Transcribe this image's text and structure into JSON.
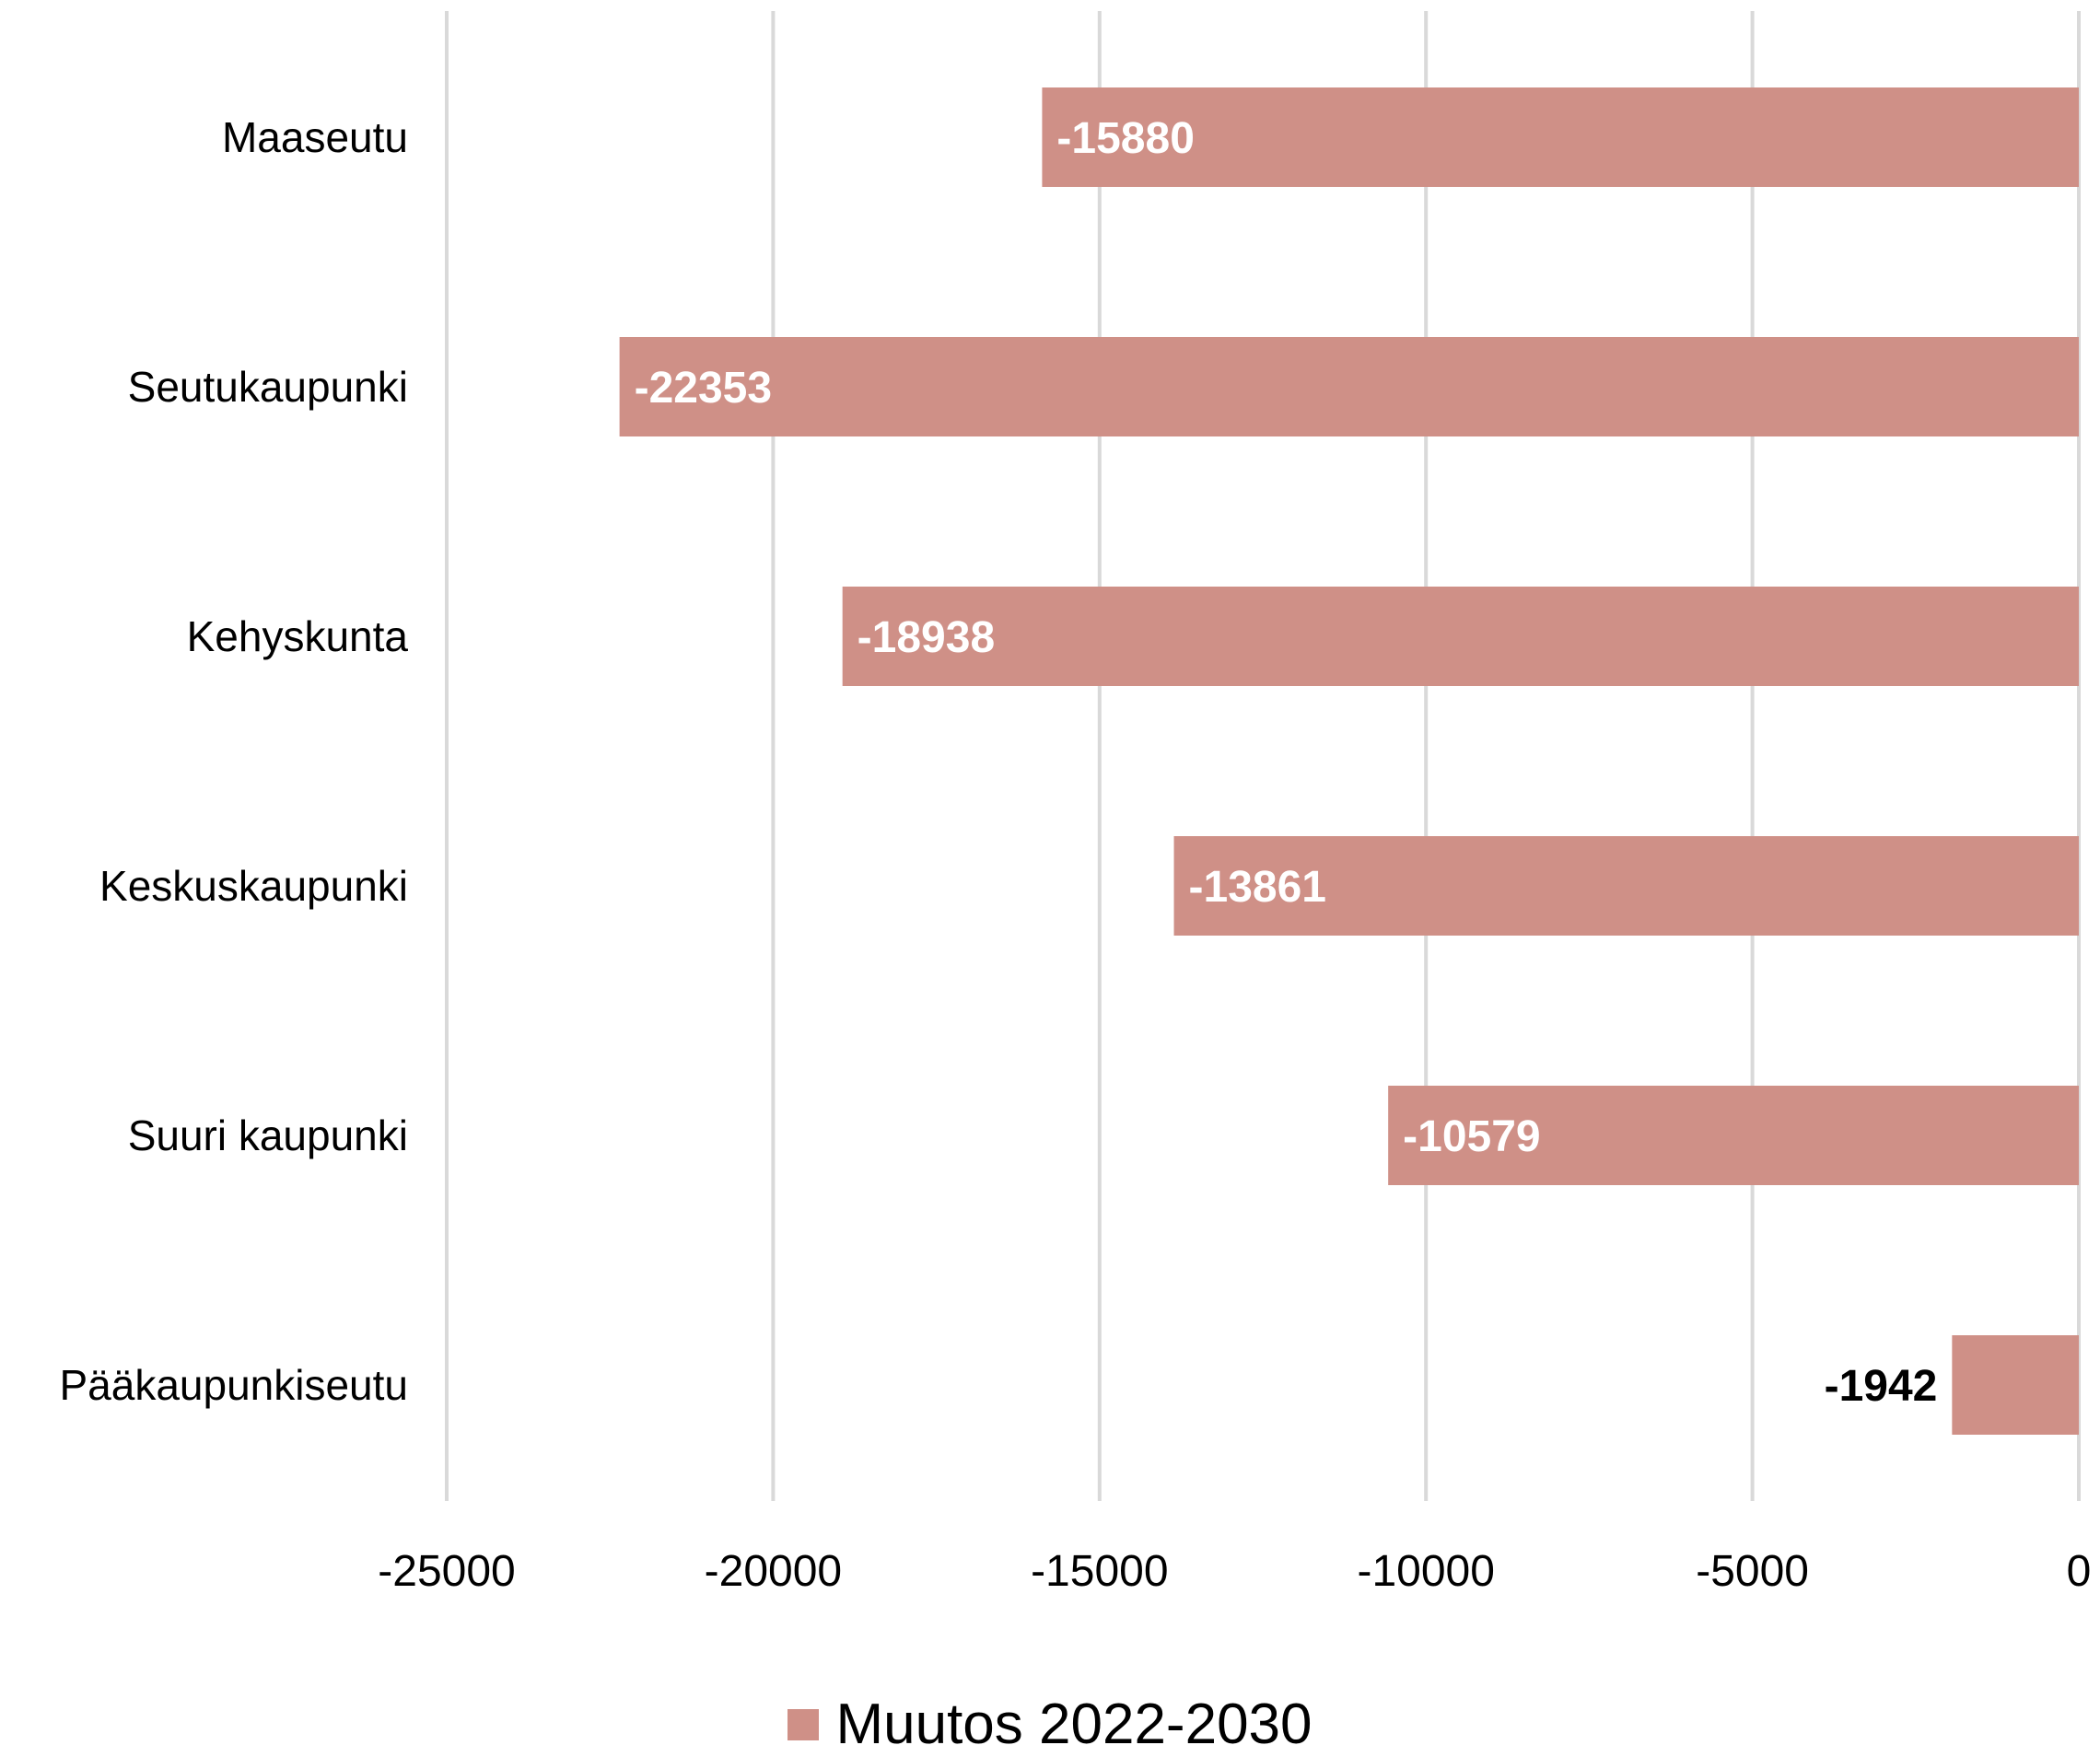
{
  "chart_data": {
    "type": "bar",
    "orientation": "horizontal",
    "categories": [
      "Maaseutu",
      "Seutukaupunki",
      "Kehyskunta",
      "Keskuskaupunki",
      "Suuri kaupunki",
      "Pääkaupunkiseutu"
    ],
    "series": [
      {
        "name": "Muutos 2022-2030",
        "values": [
          -15880,
          -22353,
          -18938,
          -13861,
          -10579,
          -1942
        ],
        "color": "#cf9087"
      }
    ],
    "data_labels": [
      "-15880",
      "-22353",
      "-18938",
      "-13861",
      "-10579",
      "-1942"
    ],
    "xlim": [
      -25000,
      0
    ],
    "xticks": [
      -25000,
      -20000,
      -15000,
      -10000,
      -5000,
      0
    ],
    "xtick_labels": [
      "-25000",
      "-20000",
      "-15000",
      "-10000",
      "-5000",
      "0"
    ],
    "grid": true,
    "grid_color": "#d9d9d9",
    "legend_position": "bottom",
    "label_color_inside": "#ffffff",
    "label_color_outside": "#000000"
  }
}
